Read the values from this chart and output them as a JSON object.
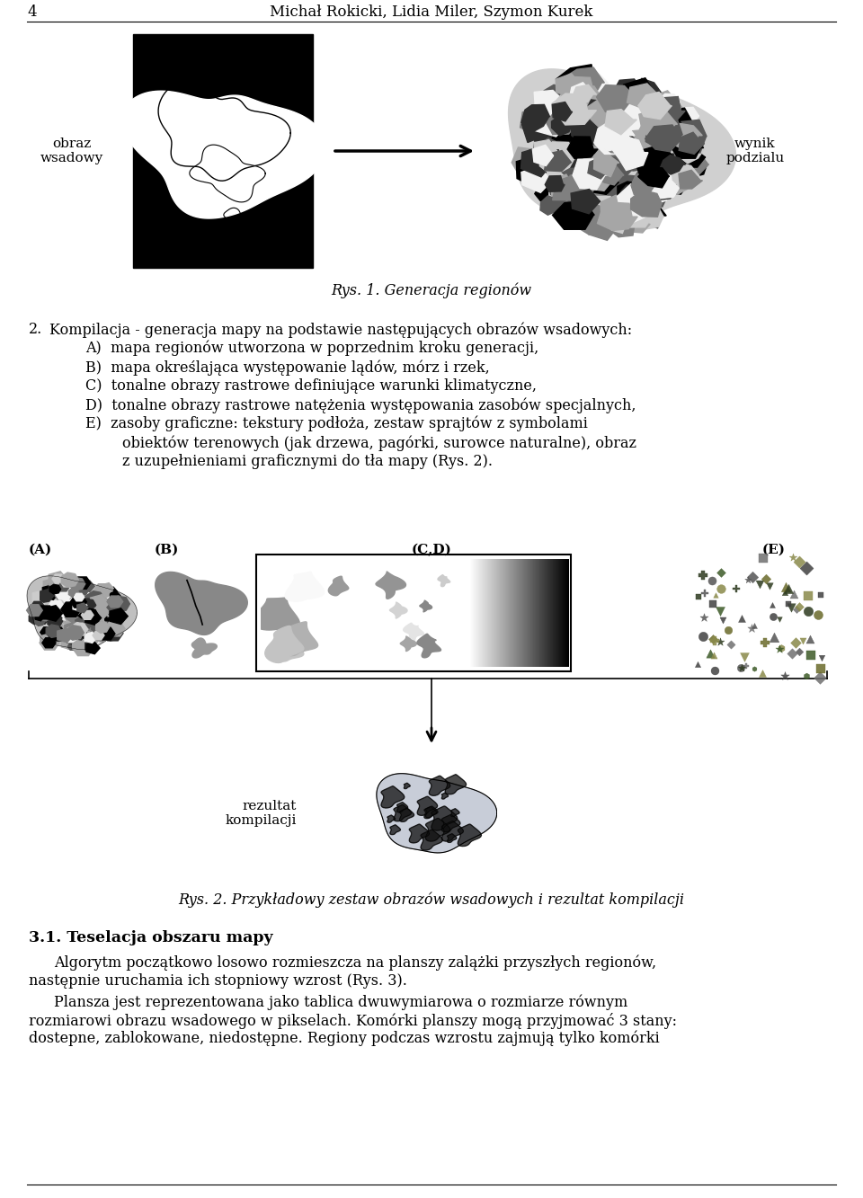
{
  "page_number": "4",
  "header_authors": "Michał Rokicki, Lidia Miler, Szymon Kurek",
  "fig1_label_left": "obraz\nwsadowy",
  "fig1_label_right": "wynik\npodzialu",
  "fig1_caption": "Rys. 1. Generacja regionów",
  "section2_title": "2.",
  "section2_text_line1": "Kompilacja - generacja mapy na podstawie następujących obrazów wsadowych:",
  "section2_itemA": "A)  mapa regionów utworzona w poprzednim kroku generacji,",
  "section2_itemB": "B)  mapa określająca występowanie lądów, mórz i rzek,",
  "section2_itemC": "C)  tonalne obrazy rastrowe definiujące warunki klimatyczne,",
  "section2_itemD": "D)  tonalne obrazy rastrowe natężenia występowania zasobów specjalnych,",
  "section2_itemE1": "E)  zasoby graficzne: tekstury podłoża, zestaw sprajtów z symbolami",
  "section2_itemE2": "        obiektów terenowych (jak drzewa, pagórki, surowce naturalne), obraz",
  "section2_itemE3": "        z uzupełnieniami graficznymi do tła mapy (Rys. 2).",
  "fig2_label_A": "(A)",
  "fig2_label_B": "(B)",
  "fig2_label_CD": "(C,D)",
  "fig2_label_E": "(E)",
  "fig2_label_result": "rezultat\nkompilacji",
  "fig2_caption": "Rys. 2. Przykładowy zestaw obrazów wsadowych i rezultat kompilacji",
  "section31_title": "3.1. Teselacja obszaru mapy",
  "section31_p1a": "Algorytm początkowo losowo rozmieszcza na planszy zalążki przyszłych regionów,",
  "section31_p1b": "następnie uruchamia ich stopniowy wzrost (Rys. 3).",
  "section31_p2a": "Plansza jest reprezentowana jako tablica dwuwymiarowa o rozmiarze równym",
  "section31_p2b": "rozmiarowi obrazu wsadowego w pikselach. Komórki planszy mogą przyjmować 3 stany:",
  "section31_p2c": "dostepne, zablokowane, niedostępne. Regiony podczas wzrostu zajmują tylko komórki",
  "bg_color": "#ffffff"
}
